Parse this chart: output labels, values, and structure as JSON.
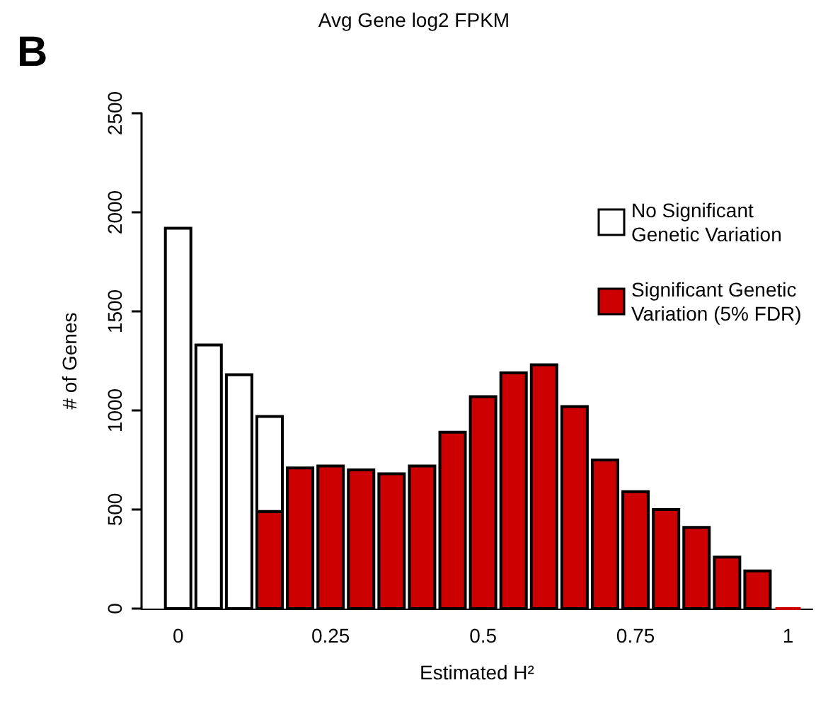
{
  "chart_data": {
    "type": "bar",
    "title": "Avg Gene log2 FPKM",
    "xlabel": "Estimated H²",
    "ylabel": "# of Genes",
    "annotations": [
      "B"
    ],
    "x": [
      0,
      0.05,
      0.1,
      0.15,
      0.2,
      0.25,
      0.3,
      0.35,
      0.4,
      0.45,
      0.5,
      0.55,
      0.6,
      0.65,
      0.7,
      0.75,
      0.8,
      0.85,
      0.9,
      0.95,
      1
    ],
    "series": [
      {
        "name": "Significant Genetic Variation (5% FDR)",
        "color": "#cc0000",
        "values": [
          null,
          null,
          null,
          490,
          710,
          720,
          700,
          680,
          720,
          890,
          1070,
          1190,
          1230,
          1020,
          750,
          590,
          500,
          410,
          260,
          190,
          0
        ]
      },
      {
        "name": "No Significant Genetic Variation",
        "color": "#ffffff",
        "values": [
          1920,
          1330,
          1180,
          480,
          null,
          null,
          null,
          null,
          null,
          null,
          null,
          null,
          null,
          null,
          null,
          null,
          null,
          null,
          null,
          null,
          null
        ]
      }
    ],
    "stacked": true,
    "xlim": [
      -0.06,
      1.04
    ],
    "xticks": [
      0,
      0.25,
      0.5,
      0.75,
      1
    ],
    "ylim": [
      0,
      2500
    ],
    "yticks": [
      0,
      500,
      {
        "value": 1000,
        "label": "1000"
      },
      {
        "value": 1500,
        "label": "1500"
      },
      {
        "value": 2000,
        "label": "2000"
      },
      {
        "value": 2500,
        "label": "2500"
      }
    ],
    "legend": "top right"
  }
}
